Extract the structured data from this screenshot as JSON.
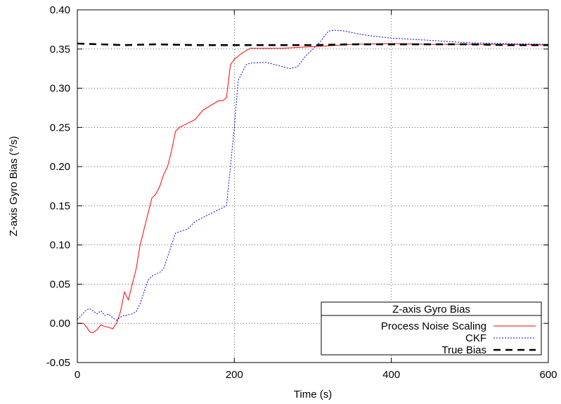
{
  "chart_data": {
    "type": "line",
    "title": "",
    "xlabel": "Time (s)",
    "ylabel": "Z-axis Gyro Bias (°/s)",
    "xlim": [
      0,
      600
    ],
    "ylim": [
      -0.05,
      0.4
    ],
    "xticks": [
      0,
      200,
      400,
      600
    ],
    "yticks": [
      -0.05,
      0.0,
      0.05,
      0.1,
      0.15,
      0.2,
      0.25,
      0.3,
      0.35,
      0.4
    ],
    "xtick_labels": [
      "0",
      "200",
      "400",
      "600"
    ],
    "ytick_labels": [
      "-0.05",
      "0.00",
      "0.05",
      "0.10",
      "0.15",
      "0.20",
      "0.25",
      "0.30",
      "0.35",
      "0.40"
    ],
    "grid": true,
    "legend": {
      "title": "Z-axis Gyro Bias",
      "position": "bottom-right",
      "entries": [
        "Process Noise Scaling",
        "CKF",
        "True Bias"
      ]
    },
    "series": [
      {
        "name": "Process Noise Scaling",
        "color": "#ff0000",
        "dash": "solid",
        "x": [
          0,
          8,
          12,
          16,
          20,
          25,
          30,
          35,
          40,
          45,
          50,
          55,
          60,
          65,
          70,
          75,
          80,
          85,
          90,
          95,
          100,
          105,
          110,
          115,
          120,
          125,
          130,
          140,
          150,
          160,
          170,
          180,
          185,
          190,
          195,
          200,
          210,
          220,
          240,
          260,
          280,
          300,
          320,
          350,
          400,
          450,
          500,
          550,
          600
        ],
        "y": [
          0.0,
          0.0,
          -0.005,
          -0.011,
          -0.012,
          -0.008,
          -0.002,
          -0.004,
          -0.005,
          -0.007,
          0.0,
          0.015,
          0.04,
          0.03,
          0.05,
          0.07,
          0.1,
          0.12,
          0.14,
          0.16,
          0.165,
          0.175,
          0.19,
          0.2,
          0.22,
          0.245,
          0.25,
          0.255,
          0.26,
          0.272,
          0.278,
          0.284,
          0.284,
          0.288,
          0.33,
          0.337,
          0.345,
          0.351,
          0.351,
          0.351,
          0.352,
          0.353,
          0.354,
          0.356,
          0.357,
          0.356,
          0.356,
          0.356,
          0.355
        ]
      },
      {
        "name": "CKF",
        "color": "#0000ff",
        "dash": "dotted",
        "x": [
          0,
          5,
          10,
          15,
          20,
          25,
          30,
          35,
          40,
          45,
          50,
          55,
          60,
          65,
          70,
          75,
          80,
          85,
          90,
          95,
          100,
          105,
          110,
          115,
          120,
          125,
          130,
          140,
          150,
          160,
          170,
          180,
          190,
          195,
          200,
          205,
          210,
          215,
          220,
          240,
          260,
          270,
          280,
          290,
          300,
          310,
          320,
          330,
          340,
          350,
          360,
          380,
          400,
          450,
          500,
          550,
          600
        ],
        "y": [
          0.005,
          0.01,
          0.016,
          0.019,
          0.016,
          0.012,
          0.016,
          0.01,
          0.012,
          0.007,
          0.004,
          0.008,
          0.01,
          0.011,
          0.012,
          0.015,
          0.025,
          0.04,
          0.055,
          0.06,
          0.063,
          0.065,
          0.07,
          0.085,
          0.1,
          0.115,
          0.117,
          0.12,
          0.13,
          0.135,
          0.14,
          0.145,
          0.15,
          0.2,
          0.25,
          0.31,
          0.32,
          0.33,
          0.332,
          0.333,
          0.328,
          0.325,
          0.327,
          0.34,
          0.35,
          0.36,
          0.373,
          0.374,
          0.373,
          0.371,
          0.369,
          0.366,
          0.364,
          0.361,
          0.358,
          0.357,
          0.356
        ]
      },
      {
        "name": "True Bias",
        "color": "#000000",
        "dash": "dashed",
        "x": [
          0,
          30,
          60,
          100,
          150,
          200,
          250,
          300,
          350,
          400,
          450,
          500,
          550,
          600
        ],
        "y": [
          0.357,
          0.356,
          0.355,
          0.356,
          0.355,
          0.355,
          0.355,
          0.355,
          0.356,
          0.356,
          0.356,
          0.356,
          0.355,
          0.355
        ]
      }
    ]
  }
}
